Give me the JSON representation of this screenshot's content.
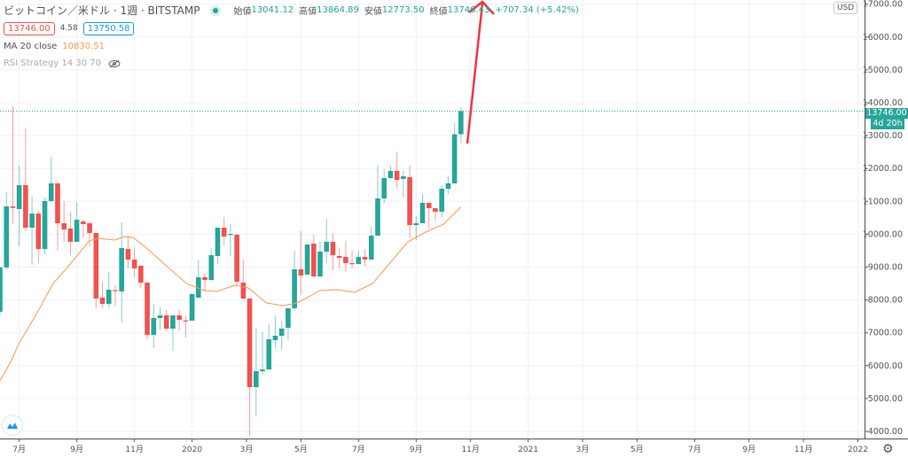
{
  "header": {
    "title": "ビットコイン／米ドル · 1週 · BITSTAMP",
    "ohlc": [
      {
        "label": "始値",
        "value": "13041.12"
      },
      {
        "label": "高値",
        "value": "13864.89"
      },
      {
        "label": "安値",
        "value": "12773.50"
      },
      {
        "label": "終値",
        "value": "13746.43"
      }
    ],
    "change": "+707.34 (+5.42%)",
    "bid": "13746.00",
    "spread": "4.58",
    "ask": "13750.58"
  },
  "indicators": {
    "ma_name": "MA 20 close",
    "ma_value": "10830.51",
    "rsi_name": "RSI Strategy 14 30 70"
  },
  "price_axis": {
    "currency": "USD",
    "last_price": "13746.00",
    "countdown": "4d 20h"
  },
  "colors": {
    "up": "#26a69a",
    "down": "#ef5350",
    "ma": "#ff9850",
    "arrow": "#f23645",
    "grid": "#edf2f7"
  },
  "chart_data": {
    "type": "candlestick",
    "title": "ビットコイン／米ドル · 1週 · BITSTAMP",
    "interval": "1 week",
    "ylim": [
      3900,
      17100
    ],
    "yticks": [
      "4000.00",
      "5000.00",
      "6000.00",
      "7000.00",
      "8000.00",
      "9000.00",
      "10000.00",
      "11000.00",
      "12000.00",
      "13000.00",
      "14000.00",
      "15000.00",
      "16000.00",
      "17000.00"
    ],
    "ytick_values": [
      4000,
      5000,
      6000,
      7000,
      8000,
      9000,
      10000,
      11000,
      12000,
      13000,
      14000,
      15000,
      16000,
      17000
    ],
    "xlim_weeks": [
      -0.2,
      135
    ],
    "xticks": [
      {
        "label": "7月",
        "week": 3
      },
      {
        "label": "9月",
        "week": 12
      },
      {
        "label": "11月",
        "week": 21
      },
      {
        "label": "2020",
        "week": 30
      },
      {
        "label": "3月",
        "week": 38.5
      },
      {
        "label": "5月",
        "week": 47
      },
      {
        "label": "7月",
        "week": 56
      },
      {
        "label": "9月",
        "week": 65
      },
      {
        "label": "11月",
        "week": 73.5
      },
      {
        "label": "2021",
        "week": 82.5
      },
      {
        "label": "3月",
        "week": 91
      },
      {
        "label": "5月",
        "week": 99.5
      },
      {
        "label": "7月",
        "week": 108.5
      },
      {
        "label": "9月",
        "week": 117
      },
      {
        "label": "11月",
        "week": 125.5
      },
      {
        "label": "2022",
        "week": 134
      }
    ],
    "grid": true,
    "candles": [
      [
        7640,
        8990,
        7500,
        8990
      ],
      [
        8990,
        11277,
        8930,
        10846
      ],
      [
        10846,
        13892,
        10307,
        10800
      ],
      [
        10766,
        12086,
        9633,
        11493
      ],
      [
        11493,
        13245,
        10092,
        10200
      ],
      [
        10200,
        11143,
        9067,
        10630
      ],
      [
        10630,
        10712,
        9120,
        9550
      ],
      [
        9550,
        11116,
        9390,
        11010
      ],
      [
        11008,
        12356,
        11008,
        11547
      ],
      [
        11547,
        11547,
        9500,
        10334
      ],
      [
        10334,
        11008,
        9768,
        10146
      ],
      [
        10173,
        10685,
        9364,
        9768
      ],
      [
        9768,
        10981,
        9768,
        10442
      ],
      [
        10388,
        10442,
        9903,
        10307
      ],
      [
        10334,
        10388,
        9633,
        10037
      ],
      [
        10037,
        10037,
        7747,
        8043
      ],
      [
        8070,
        8555,
        7747,
        7881
      ],
      [
        7881,
        8852,
        7774,
        8312
      ],
      [
        8300,
        8447,
        7827,
        8270
      ],
      [
        8259,
        10361,
        7315,
        9580
      ],
      [
        9550,
        9957,
        8960,
        9229
      ],
      [
        9229,
        9606,
        8690,
        8960
      ],
      [
        9040,
        9040,
        8366,
        8528
      ],
      [
        8528,
        8528,
        6800,
        6938
      ],
      [
        6938,
        7881,
        6534,
        7450
      ],
      [
        7450,
        7774,
        7100,
        7531
      ],
      [
        7531,
        7693,
        7046,
        7127
      ],
      [
        7127,
        7531,
        6450,
        7531
      ],
      [
        7531,
        7720,
        7073,
        7396
      ],
      [
        7380,
        7531,
        6857,
        7360
      ],
      [
        7369,
        8178,
        7369,
        8178
      ],
      [
        8070,
        9202,
        8070,
        8690
      ],
      [
        8690,
        8825,
        8259,
        8609
      ],
      [
        8609,
        9579,
        8582,
        9363
      ],
      [
        9337,
        10200,
        9094,
        10200
      ],
      [
        10200,
        10523,
        9660,
        9930
      ],
      [
        9984,
        10307,
        9337,
        10010
      ],
      [
        9984,
        9984,
        8447,
        8555
      ],
      [
        8528,
        9229,
        8043,
        8043
      ],
      [
        8043,
        8043,
        3865,
        5348
      ],
      [
        5348,
        7154,
        4458,
        5833
      ],
      [
        5833,
        7019,
        5725,
        5887
      ],
      [
        5887,
        7261,
        5887,
        6803
      ],
      [
        6776,
        7504,
        6534,
        6911
      ],
      [
        6911,
        7342,
        6480,
        7127
      ],
      [
        7154,
        7747,
        6803,
        7747
      ],
      [
        7747,
        9498,
        7666,
        8933
      ],
      [
        8933,
        10092,
        8151,
        8744
      ],
      [
        8771,
        9687,
        8771,
        9687
      ],
      [
        9714,
        9984,
        8690,
        8717
      ],
      [
        8717,
        9768,
        8690,
        9471
      ],
      [
        9471,
        10469,
        9121,
        9768
      ],
      [
        9768,
        10037,
        8906,
        9364
      ],
      [
        9337,
        9600,
        8960,
        9283
      ],
      [
        9310,
        9795,
        8852,
        9121
      ],
      [
        9121,
        9500,
        8960,
        9094
      ],
      [
        9094,
        9498,
        9094,
        9310
      ],
      [
        9310,
        9550,
        9040,
        9229
      ],
      [
        9229,
        10226,
        9229,
        9957
      ],
      [
        9957,
        12113,
        9957,
        11089
      ],
      [
        11089,
        11978,
        10954,
        11709
      ],
      [
        11709,
        12086,
        11709,
        11925
      ],
      [
        11925,
        12491,
        11385,
        11655
      ],
      [
        11682,
        11925,
        11116,
        11763
      ],
      [
        11736,
        12086,
        9876,
        10280
      ],
      [
        10280,
        10550,
        9822,
        10334
      ],
      [
        10334,
        11220,
        10334,
        10954
      ],
      [
        10954,
        10980,
        10173,
        10792
      ],
      [
        10792,
        10800,
        10415,
        10685
      ],
      [
        10685,
        11500,
        10523,
        11385
      ],
      [
        11385,
        11763,
        11224,
        11547
      ],
      [
        11547,
        13380,
        11547,
        13041
      ],
      [
        13041.12,
        13864.89,
        12773.5,
        13746.43
      ]
    ],
    "candle_format": [
      "open",
      "high",
      "low",
      "close"
    ],
    "ma20": [
      [
        0,
        5536
      ],
      [
        1.7,
        6130
      ],
      [
        3,
        6695
      ],
      [
        5.5,
        7504
      ],
      [
        8.3,
        8500
      ],
      [
        11.1,
        9121
      ],
      [
        13.9,
        9795
      ],
      [
        15.2,
        9876
      ],
      [
        18,
        9822
      ],
      [
        19.4,
        9930
      ],
      [
        20.8,
        9900
      ],
      [
        22.9,
        9579
      ],
      [
        24.9,
        9229
      ],
      [
        26.3,
        8987
      ],
      [
        29.1,
        8500
      ],
      [
        31.9,
        8285
      ],
      [
        33.9,
        8258
      ],
      [
        36.7,
        8447
      ],
      [
        38.8,
        8366
      ],
      [
        41.6,
        7908
      ],
      [
        44.3,
        7827
      ],
      [
        46.4,
        7908
      ],
      [
        48.5,
        8124
      ],
      [
        49.9,
        8285
      ],
      [
        52.6,
        8312
      ],
      [
        55.4,
        8231
      ],
      [
        58.2,
        8500
      ],
      [
        60.9,
        9121
      ],
      [
        63.7,
        9768
      ],
      [
        66.5,
        10065
      ],
      [
        69.3,
        10307
      ],
      [
        72,
        10830.51
      ]
    ]
  }
}
